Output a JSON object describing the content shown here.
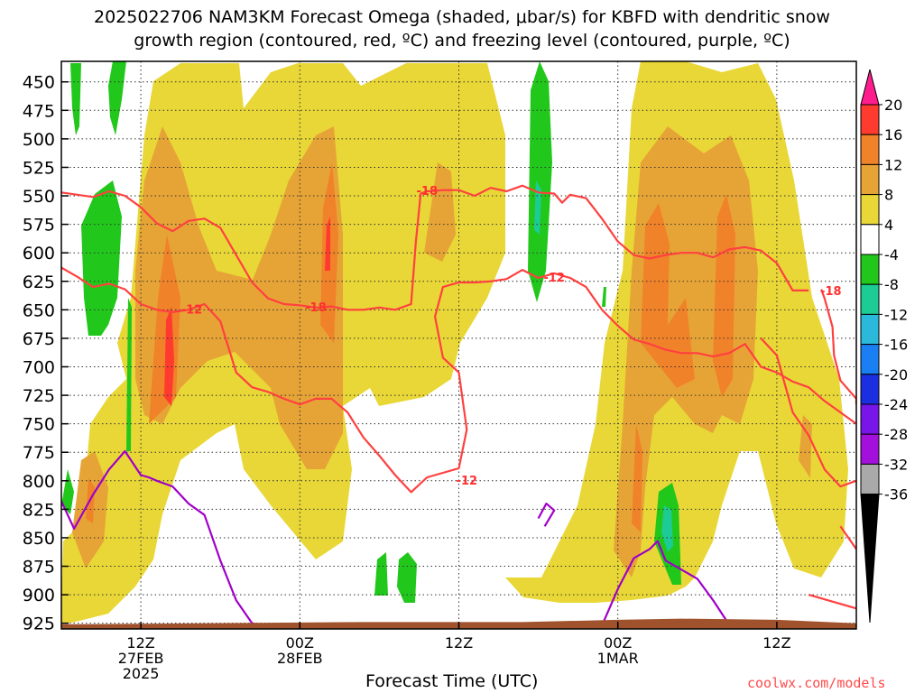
{
  "title": {
    "line1": "2025022706 NAM3KM Forecast Omega (shaded, μbar/s) for KBFD with dendritic snow",
    "line2": "growth region (contoured, red, ºC) and freezing level (contoured, purple, ºC)"
  },
  "x_axis_label": "Forecast Time (UTC)",
  "credit": "coolwx.com/models",
  "chart_data": {
    "type": "heatmap",
    "title": "2025022706 NAM3KM Forecast Omega (shaded, μbar/s) for KBFD with dendritic snow growth region (contoured, red, ºC) and freezing level (contoured, purple, ºC)",
    "xlabel": "Forecast Time (UTC)",
    "ylabel": "",
    "y_axis": {
      "unit": "hPa",
      "inverted": true,
      "range": [
        930,
        432
      ],
      "ticks": [
        450,
        475,
        500,
        525,
        550,
        575,
        600,
        625,
        650,
        675,
        700,
        725,
        750,
        775,
        800,
        825,
        850,
        875,
        900,
        925
      ]
    },
    "x_axis": {
      "range_hours": [
        1,
        51
      ],
      "ticks": [
        {
          "hour": 6,
          "lines": [
            "12Z",
            "27FEB",
            "2025"
          ]
        },
        {
          "hour": 16,
          "lines": [
            "00Z",
            "28FEB"
          ]
        },
        {
          "hour": 26,
          "lines": [
            "12Z"
          ]
        },
        {
          "hour": 36,
          "lines": [
            "00Z",
            "1MAR"
          ]
        },
        {
          "hour": 46,
          "lines": [
            "12Z"
          ]
        }
      ]
    },
    "grid": true,
    "colorbar": {
      "labels": [
        "20",
        "16",
        "12",
        "8",
        "4",
        "-4",
        "-8",
        "-12",
        "-16",
        "-20",
        "-24",
        "-28",
        "-32",
        "-36"
      ],
      "colors": [
        "#ff1d8e",
        "#ff3a2e",
        "#f0822a",
        "#e7a436",
        "#e8d737",
        "#ffffff",
        "#21c81b",
        "#1dcb94",
        "#2ab9db",
        "#1a7ff2",
        "#1b2fe0",
        "#7815e8",
        "#a30fdb",
        "#a9a9a9",
        "#000000"
      ]
    },
    "omega_shading": [
      {
        "type": "positive",
        "level": "4 to 8",
        "color": "#e8d737"
      },
      {
        "type": "positive",
        "level": "8 to 12",
        "color": "#e7a436"
      },
      {
        "type": "positive",
        "level": "12 to 16",
        "color": "#f0822a"
      },
      {
        "type": "positive",
        "level": "16 to 20",
        "color": "#ff3a2e"
      },
      {
        "type": "negative",
        "level": "-4 to -8",
        "color": "#21c81b"
      },
      {
        "type": "negative",
        "level": "-8 to -12",
        "color": "#1dcb94"
      }
    ],
    "contour_labels": [
      "-18",
      "-12",
      "-12",
      "-18",
      "-12",
      "-18",
      "-12",
      "-18"
    ],
    "dgz_contours": [
      {
        "label": "-18",
        "color": "#ff4040",
        "points": [
          [
            1,
            547
          ],
          [
            3,
            551
          ],
          [
            4,
            546
          ],
          [
            5,
            550
          ],
          [
            6,
            560
          ],
          [
            7,
            574
          ],
          [
            8,
            581
          ],
          [
            9,
            572
          ],
          [
            10,
            570
          ],
          [
            11,
            578
          ],
          [
            12,
            602
          ],
          [
            13,
            626
          ],
          [
            14,
            640
          ],
          [
            15,
            645
          ],
          [
            16,
            646
          ],
          [
            17,
            648
          ],
          [
            18,
            647
          ],
          [
            19,
            650
          ],
          [
            20,
            650
          ],
          [
            21,
            648
          ],
          [
            22,
            650
          ],
          [
            23,
            645
          ],
          [
            23.3,
            590
          ],
          [
            23.6,
            548
          ],
          [
            24,
            546
          ],
          [
            25,
            545
          ],
          [
            26,
            545
          ],
          [
            27,
            550
          ],
          [
            28,
            543
          ],
          [
            29,
            546
          ],
          [
            30,
            541
          ],
          [
            31,
            547
          ],
          [
            32,
            548
          ],
          [
            32.5,
            556
          ],
          [
            33,
            549
          ],
          [
            34,
            552
          ],
          [
            35,
            570
          ],
          [
            36,
            590
          ],
          [
            37,
            602
          ],
          [
            38,
            605
          ],
          [
            39,
            602
          ],
          [
            40,
            600
          ],
          [
            41,
            600
          ],
          [
            42,
            604
          ],
          [
            43,
            597
          ],
          [
            44,
            595
          ],
          [
            45,
            598
          ],
          [
            46,
            609
          ],
          [
            47,
            633
          ],
          [
            48,
            633
          ]
        ]
      },
      {
        "label": "-12",
        "color": "#ff4040",
        "points": [
          [
            1,
            613
          ],
          [
            2,
            621
          ],
          [
            3,
            630
          ],
          [
            4,
            627
          ],
          [
            5,
            632
          ],
          [
            6,
            645
          ],
          [
            7,
            650
          ],
          [
            8,
            652
          ],
          [
            9,
            650
          ],
          [
            10,
            645
          ],
          [
            11,
            660
          ],
          [
            12,
            705
          ],
          [
            13,
            718
          ],
          [
            14,
            722
          ],
          [
            15,
            728
          ],
          [
            16,
            733
          ],
          [
            17,
            728
          ],
          [
            18,
            728
          ],
          [
            19,
            740
          ],
          [
            20,
            762
          ],
          [
            21,
            778
          ],
          [
            22,
            795
          ],
          [
            23,
            810
          ],
          [
            24,
            797
          ],
          [
            25,
            793
          ],
          [
            26,
            789
          ],
          [
            26.5,
            755
          ],
          [
            26,
            705
          ],
          [
            25,
            692
          ],
          [
            24.5,
            656
          ],
          [
            25,
            630
          ],
          [
            26,
            626
          ],
          [
            27,
            626
          ],
          [
            28,
            625
          ],
          [
            29,
            623
          ],
          [
            30,
            615
          ],
          [
            31,
            622
          ],
          [
            32,
            618
          ],
          [
            33,
            622
          ],
          [
            34,
            630
          ],
          [
            35,
            650
          ],
          [
            36,
            664
          ],
          [
            37,
            676
          ],
          [
            38,
            680
          ],
          [
            39,
            685
          ],
          [
            40,
            688
          ],
          [
            41,
            688
          ],
          [
            42,
            691
          ],
          [
            43,
            688
          ],
          [
            44,
            680
          ],
          [
            45,
            700
          ],
          [
            46,
            705
          ],
          [
            47,
            713
          ],
          [
            48,
            718
          ],
          [
            49,
            730
          ],
          [
            50,
            740
          ],
          [
            51,
            750
          ]
        ]
      },
      {
        "label": "-18",
        "color": "#ff4040",
        "points": [
          [
            48.8,
            632
          ],
          [
            49,
            640
          ],
          [
            49.5,
            665
          ],
          [
            49.6,
            690
          ],
          [
            50,
            712
          ],
          [
            51,
            728
          ],
          [
            51,
            733
          ]
        ]
      },
      {
        "label": "",
        "color": "#ff4040",
        "points": [
          [
            45,
            675
          ],
          [
            46,
            690
          ],
          [
            47,
            740
          ],
          [
            48,
            760
          ],
          [
            49,
            790
          ],
          [
            50,
            805
          ],
          [
            51,
            800
          ]
        ]
      },
      {
        "label": "",
        "color": "#ff4040",
        "points": [
          [
            50,
            840
          ],
          [
            51,
            860
          ]
        ]
      },
      {
        "label": "",
        "color": "#ff4040",
        "points": [
          [
            48,
            900
          ],
          [
            51,
            912
          ]
        ]
      }
    ],
    "freezing_level_contours": [
      {
        "color": "#a000c8",
        "points": [
          [
            1,
            818
          ],
          [
            1.8,
            842
          ],
          [
            3,
            812
          ],
          [
            4,
            790
          ],
          [
            5,
            774
          ],
          [
            6,
            795
          ],
          [
            6.5,
            797
          ],
          [
            7,
            800
          ],
          [
            8,
            805
          ],
          [
            9,
            820
          ],
          [
            10,
            830
          ],
          [
            11,
            870
          ],
          [
            12,
            905
          ],
          [
            13,
            925
          ],
          [
            14,
            928
          ],
          [
            15,
            930
          ]
        ]
      },
      {
        "color": "#a000c8",
        "points": [
          [
            17.8,
            930
          ],
          [
            18,
            926
          ],
          [
            19,
            928
          ],
          [
            20,
            932
          ]
        ]
      },
      {
        "color": "#a000c8",
        "points": [
          [
            31,
            833
          ],
          [
            31.5,
            820
          ],
          [
            32,
            826
          ],
          [
            31.4,
            840
          ]
        ]
      },
      {
        "color": "#a000c8",
        "points": [
          [
            35,
            927
          ],
          [
            36,
            895
          ],
          [
            37,
            868
          ],
          [
            38,
            860
          ],
          [
            38.5,
            853
          ],
          [
            39,
            870
          ],
          [
            40,
            878
          ],
          [
            41,
            886
          ],
          [
            42,
            905
          ],
          [
            42.8,
            922
          ]
        ]
      }
    ]
  }
}
